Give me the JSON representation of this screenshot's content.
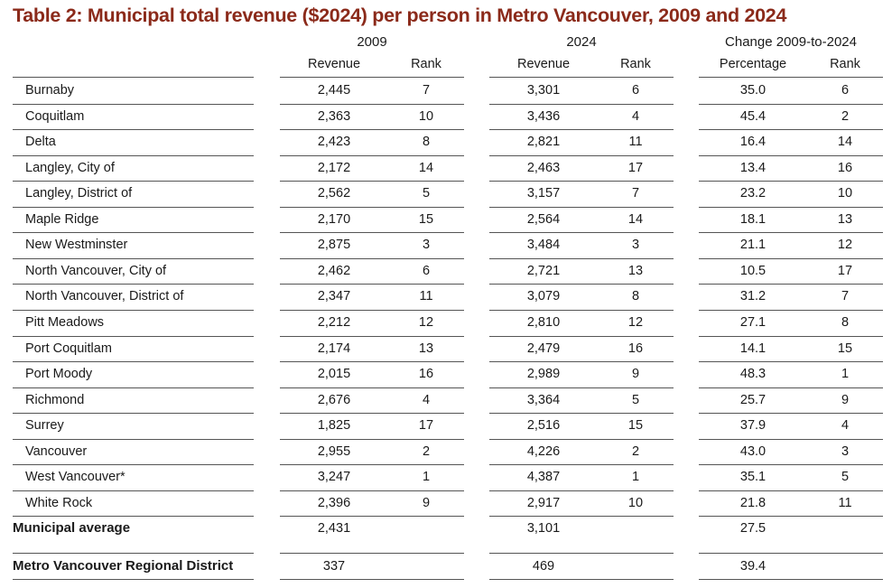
{
  "title": "Table 2: Municipal total revenue ($2024) per person in Metro Vancouver, 2009 and 2024",
  "groups": [
    {
      "label": "2009",
      "sub1": "Revenue",
      "sub2": "Rank"
    },
    {
      "label": "2024",
      "sub1": "Revenue",
      "sub2": "Rank"
    },
    {
      "label": "Change 2009-to-2024",
      "sub1": "Percentage",
      "sub2": "Rank"
    }
  ],
  "rows": [
    {
      "name": "Burnaby",
      "r09": "2,445",
      "k09": "7",
      "r24": "3,301",
      "k24": "6",
      "pct": "35.0",
      "kc": "6"
    },
    {
      "name": "Coquitlam",
      "r09": "2,363",
      "k09": "10",
      "r24": "3,436",
      "k24": "4",
      "pct": "45.4",
      "kc": "2"
    },
    {
      "name": "Delta",
      "r09": "2,423",
      "k09": "8",
      "r24": "2,821",
      "k24": "11",
      "pct": "16.4",
      "kc": "14"
    },
    {
      "name": "Langley, City of",
      "r09": "2,172",
      "k09": "14",
      "r24": "2,463",
      "k24": "17",
      "pct": "13.4",
      "kc": "16"
    },
    {
      "name": "Langley, District of",
      "r09": "2,562",
      "k09": "5",
      "r24": "3,157",
      "k24": "7",
      "pct": "23.2",
      "kc": "10"
    },
    {
      "name": "Maple Ridge",
      "r09": "2,170",
      "k09": "15",
      "r24": "2,564",
      "k24": "14",
      "pct": "18.1",
      "kc": "13"
    },
    {
      "name": "New Westminster",
      "r09": "2,875",
      "k09": "3",
      "r24": "3,484",
      "k24": "3",
      "pct": "21.1",
      "kc": "12"
    },
    {
      "name": "North Vancouver, City of",
      "r09": "2,462",
      "k09": "6",
      "r24": "2,721",
      "k24": "13",
      "pct": "10.5",
      "kc": "17"
    },
    {
      "name": "North Vancouver, District of",
      "r09": "2,347",
      "k09": "11",
      "r24": "3,079",
      "k24": "8",
      "pct": "31.2",
      "kc": "7"
    },
    {
      "name": "Pitt Meadows",
      "r09": "2,212",
      "k09": "12",
      "r24": "2,810",
      "k24": "12",
      "pct": "27.1",
      "kc": "8"
    },
    {
      "name": "Port Coquitlam",
      "r09": "2,174",
      "k09": "13",
      "r24": "2,479",
      "k24": "16",
      "pct": "14.1",
      "kc": "15"
    },
    {
      "name": "Port Moody",
      "r09": "2,015",
      "k09": "16",
      "r24": "2,989",
      "k24": "9",
      "pct": "48.3",
      "kc": "1"
    },
    {
      "name": "Richmond",
      "r09": "2,676",
      "k09": "4",
      "r24": "3,364",
      "k24": "5",
      "pct": "25.7",
      "kc": "9"
    },
    {
      "name": "Surrey",
      "r09": "1,825",
      "k09": "17",
      "r24": "2,516",
      "k24": "15",
      "pct": "37.9",
      "kc": "4"
    },
    {
      "name": "Vancouver",
      "r09": "2,955",
      "k09": "2",
      "r24": "4,226",
      "k24": "2",
      "pct": "43.0",
      "kc": "3"
    },
    {
      "name": "West Vancouver*",
      "r09": "3,247",
      "k09": "1",
      "r24": "4,387",
      "k24": "1",
      "pct": "35.1",
      "kc": "5"
    },
    {
      "name": "White Rock",
      "r09": "2,396",
      "k09": "9",
      "r24": "2,917",
      "k24": "10",
      "pct": "21.8",
      "kc": "11"
    }
  ],
  "average": {
    "name": "Municipal average",
    "r09": "2,431",
    "r24": "3,101",
    "pct": "27.5"
  },
  "regional": {
    "name": "Metro Vancouver Regional District",
    "r09": "337",
    "r24": "469",
    "pct": "39.4"
  }
}
